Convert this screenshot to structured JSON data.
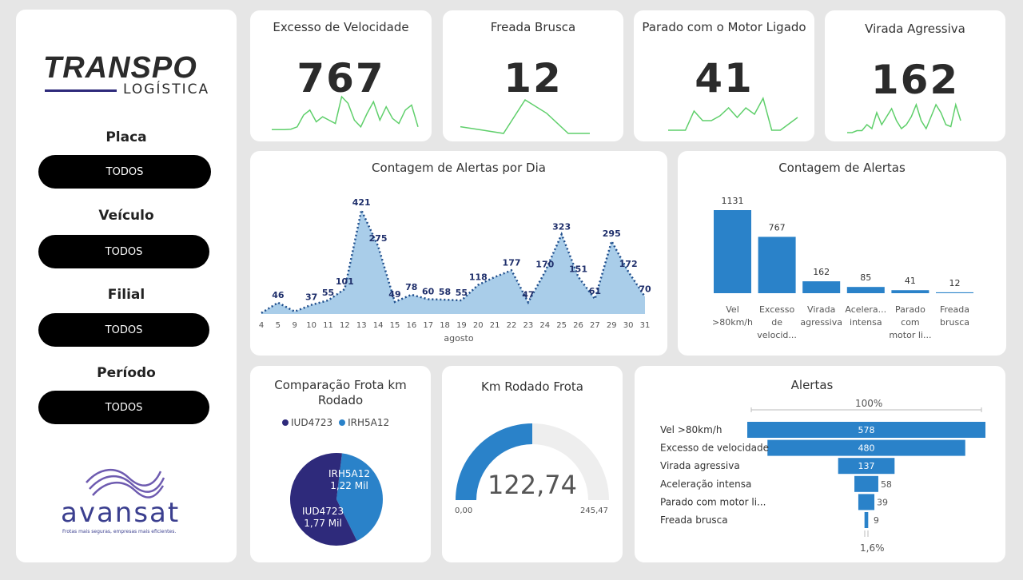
{
  "brand": {
    "name": "TRANSPO",
    "subtitle": "LOGÍSTICA",
    "partner_name": "avansat",
    "partner_tagline": "Frotas mais seguras, empresas mais eficientes."
  },
  "filters": [
    {
      "label": "Placa",
      "value": "TODOS"
    },
    {
      "label": "Veículo",
      "value": "TODOS"
    },
    {
      "label": "Filial",
      "value": "TODOS"
    },
    {
      "label": "Período",
      "value": "TODOS"
    }
  ],
  "kpis": [
    {
      "title": "Excesso de Velocidade",
      "value": "767",
      "spark": [
        2,
        2,
        2,
        3,
        10,
        45,
        60,
        25,
        40,
        30,
        20,
        100,
        80,
        30,
        10,
        50,
        85,
        30,
        70,
        35,
        20,
        60,
        75,
        10
      ]
    },
    {
      "title": "Freada Brusca",
      "value": "12",
      "spark": [
        20,
        10,
        0,
        100,
        60,
        0,
        0
      ]
    },
    {
      "title": "Parado com o Motor Ligado",
      "value": "41",
      "spark": [
        0,
        0,
        0,
        60,
        30,
        30,
        45,
        70,
        40,
        70,
        50,
        100,
        0,
        0,
        20,
        40
      ]
    },
    {
      "title": "Virada Agressiva",
      "value": "162",
      "spark": [
        0,
        0,
        5,
        5,
        20,
        10,
        50,
        20,
        40,
        60,
        30,
        10,
        20,
        40,
        70,
        30,
        10,
        40,
        70,
        50,
        20,
        15,
        70,
        30
      ]
    }
  ],
  "daily_chart": {
    "title": "Contagem de Alertas por Dia",
    "xlabel": "agosto"
  },
  "category_chart": {
    "title": "Contagem de Alertas"
  },
  "comparison": {
    "title": "Comparação Frota km Rodado",
    "legend": [
      {
        "label": "IUD4723",
        "color": "#2e2a7b"
      },
      {
        "label": "IRH5A12",
        "color": "#2a82c9"
      }
    ],
    "slices": [
      {
        "name": "IUD4723",
        "value_label": "1,77 Mil",
        "value": 1.77,
        "color": "#2e2a7b"
      },
      {
        "name": "IRH5A12",
        "value_label": "1,22 Mil",
        "value": 1.22,
        "color": "#2a82c9"
      }
    ]
  },
  "gauge": {
    "title": "Km Rodado Frota",
    "value": 122.74,
    "value_label": "122,74",
    "min_label": "0,00",
    "max_label": "245,47",
    "min": 0,
    "max": 245.47
  },
  "funnel_chart": {
    "title": "Alertas",
    "top_label": "100%",
    "bottom_label": "1,6%"
  },
  "chart_data": [
    {
      "type": "area",
      "title": "Contagem de Alertas por Dia",
      "xlabel": "agosto",
      "ylabel": "",
      "categories": [
        "4",
        "5",
        "9",
        "10",
        "11",
        "12",
        "13",
        "14",
        "15",
        "16",
        "17",
        "18",
        "19",
        "20",
        "21",
        "22",
        "23",
        "24",
        "25",
        "26",
        "27",
        "29",
        "30",
        "31"
      ],
      "values": [
        null,
        46,
        null,
        37,
        55,
        101,
        421,
        275,
        49,
        78,
        60,
        58,
        55,
        118,
        null,
        177,
        47,
        170,
        323,
        151,
        61,
        295,
        172,
        70
      ],
      "plot_values": [
        4,
        46,
        10,
        37,
        55,
        101,
        421,
        275,
        49,
        78,
        60,
        58,
        55,
        118,
        150,
        177,
        47,
        170,
        323,
        151,
        61,
        295,
        172,
        70
      ],
      "ylim": [
        0,
        440
      ]
    },
    {
      "type": "bar",
      "title": "Contagem de Alertas",
      "categories": [
        "Vel >80km/h",
        "Excesso de velocid...",
        "Virada agressiva",
        "Acelera... intensa",
        "Parado com motor li...",
        "Freada brusca"
      ],
      "values": [
        1131,
        767,
        162,
        85,
        41,
        12
      ],
      "value_labels": [
        "1131",
        "767",
        "162",
        "85",
        "41",
        "12"
      ],
      "ylim": [
        0,
        1131
      ]
    },
    {
      "type": "pie",
      "title": "Comparação Frota km Rodado",
      "categories": [
        "IUD4723",
        "IRH5A12"
      ],
      "values": [
        1.77,
        1.22
      ]
    },
    {
      "type": "bar",
      "title": "Alertas",
      "categories": [
        "Vel >80km/h",
        "Excesso de velocidade",
        "Virada agressiva",
        "Aceleração intensa",
        "Parado com motor li...",
        "Freada brusca"
      ],
      "values": [
        578,
        480,
        137,
        58,
        39,
        9
      ],
      "value_labels": [
        "578",
        "480",
        "137",
        "58",
        "39",
        "9"
      ]
    }
  ]
}
